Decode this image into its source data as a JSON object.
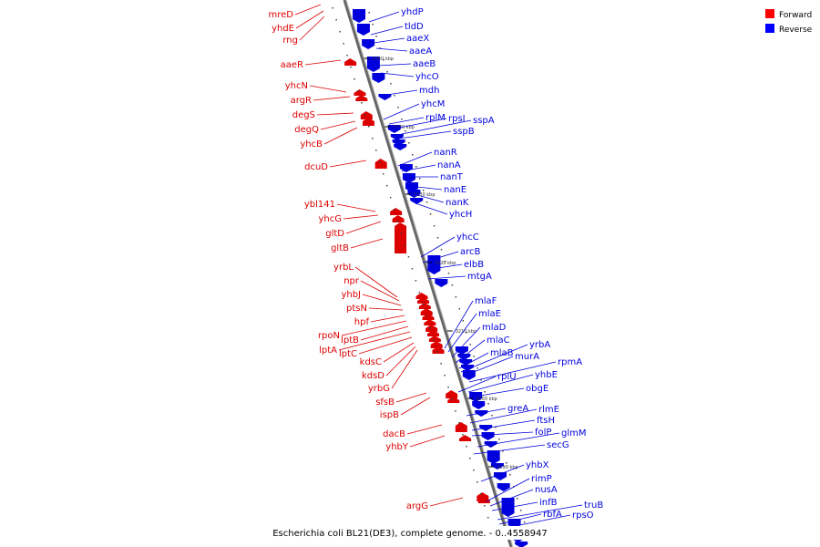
{
  "caption": "Escherichia coli BL21(DE3), complete genome. - 0..4558947",
  "legend": [
    {
      "label": "Forward",
      "color": "#ff0000"
    },
    {
      "label": "Reverse",
      "color": "#0000ff"
    }
  ],
  "colors": {
    "forward": "#dd0000",
    "reverse": "#0000dd",
    "axis": "#888888"
  },
  "ticks": [
    "3250 kbp",
    "3240 kbp",
    "3230 kbp",
    "3220 kbp",
    "3210 kbp",
    "3200 kbp",
    "3190 kbp"
  ],
  "left_labels": [
    "mreD",
    "yhdE",
    "rng",
    "aaeR",
    "yhcN",
    "argR",
    "degS",
    "degQ",
    "yhcB",
    "dcuD",
    "ybl141",
    "yhcG",
    "gltD",
    "gltB",
    "yrbL",
    "npr",
    "yhbJ",
    "ptsN",
    "hpf",
    "rpoN",
    "lptB",
    "lptA",
    "lptC",
    "kdsC",
    "kdsD",
    "yrbG",
    "sfsB",
    "ispB",
    "dacB",
    "yhbY",
    "argG"
  ],
  "right_labels": [
    "yhdP",
    "tldD",
    "aaeX",
    "aaeA",
    "aaeB",
    "yhcO",
    "mdh",
    "yhcM",
    "rplM",
    "rpsI",
    "sspA",
    "sspB",
    "nanR",
    "nanA",
    "nanT",
    "nanE",
    "nanK",
    "yhcH",
    "yhcC",
    "arcB",
    "elbB",
    "mtgA",
    "mlaF",
    "mlaE",
    "mlaD",
    "mlaC",
    "mlaB",
    "yrbA",
    "murA",
    "rpmA",
    "rplU",
    "yhbE",
    "obgE",
    "greA",
    "rlmE",
    "ftsH",
    "folP",
    "glmM",
    "secG",
    "yhbX",
    "rimP",
    "nusA",
    "infB",
    "truB",
    "rbfA",
    "rpsO"
  ]
}
